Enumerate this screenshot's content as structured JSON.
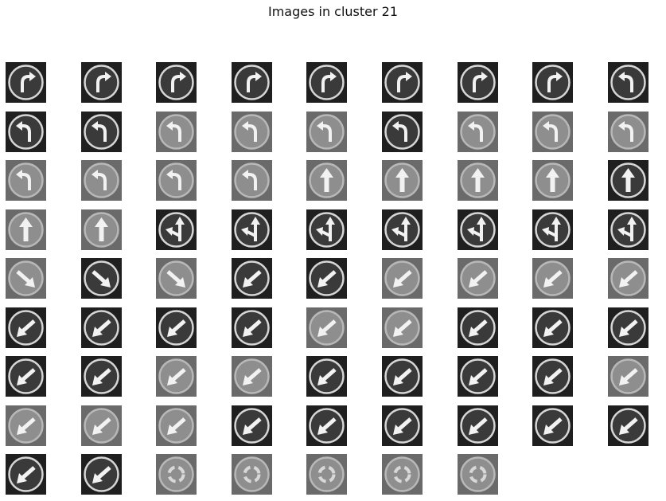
{
  "title": "Images in cluster 21",
  "grid": {
    "columns": 9,
    "count": 79
  },
  "thumbnails": [
    {
      "icon": "turn-right-arrow-icon",
      "tone": "dark"
    },
    {
      "icon": "turn-right-arrow-icon",
      "tone": "dark"
    },
    {
      "icon": "turn-right-arrow-icon",
      "tone": "dark"
    },
    {
      "icon": "turn-right-arrow-icon",
      "tone": "dark"
    },
    {
      "icon": "turn-right-arrow-icon",
      "tone": "dark"
    },
    {
      "icon": "turn-right-arrow-icon",
      "tone": "dark"
    },
    {
      "icon": "turn-right-arrow-icon",
      "tone": "dark"
    },
    {
      "icon": "turn-right-arrow-icon",
      "tone": "dark"
    },
    {
      "icon": "turn-left-arrow-icon",
      "tone": "dark"
    },
    {
      "icon": "turn-left-arrow-icon",
      "tone": "dark"
    },
    {
      "icon": "turn-left-arrow-icon",
      "tone": "dark"
    },
    {
      "icon": "turn-left-arrow-icon",
      "tone": "light"
    },
    {
      "icon": "turn-left-arrow-icon",
      "tone": "light"
    },
    {
      "icon": "turn-left-arrow-icon",
      "tone": "light"
    },
    {
      "icon": "turn-left-arrow-icon",
      "tone": "dark"
    },
    {
      "icon": "turn-left-arrow-icon",
      "tone": "light"
    },
    {
      "icon": "turn-left-arrow-icon",
      "tone": "light"
    },
    {
      "icon": "turn-left-arrow-icon",
      "tone": "light"
    },
    {
      "icon": "turn-left-arrow-icon",
      "tone": "light"
    },
    {
      "icon": "turn-left-arrow-icon",
      "tone": "light"
    },
    {
      "icon": "turn-left-arrow-icon",
      "tone": "light"
    },
    {
      "icon": "turn-left-arrow-icon",
      "tone": "light"
    },
    {
      "icon": "up-arrow-icon",
      "tone": "light"
    },
    {
      "icon": "up-arrow-icon",
      "tone": "light"
    },
    {
      "icon": "up-arrow-icon",
      "tone": "light"
    },
    {
      "icon": "up-arrow-icon",
      "tone": "light"
    },
    {
      "icon": "up-arrow-icon",
      "tone": "dark"
    },
    {
      "icon": "up-arrow-icon",
      "tone": "light"
    },
    {
      "icon": "up-arrow-icon",
      "tone": "light"
    },
    {
      "icon": "straight-or-left-arrow-icon",
      "tone": "dark"
    },
    {
      "icon": "straight-or-left-arrow-icon",
      "tone": "dark"
    },
    {
      "icon": "straight-or-left-arrow-icon",
      "tone": "dark"
    },
    {
      "icon": "straight-or-left-arrow-icon",
      "tone": "dark"
    },
    {
      "icon": "straight-or-left-arrow-icon",
      "tone": "dark"
    },
    {
      "icon": "straight-or-left-arrow-icon",
      "tone": "dark"
    },
    {
      "icon": "straight-or-left-arrow-icon",
      "tone": "dark"
    },
    {
      "icon": "down-right-arrow-icon",
      "tone": "light"
    },
    {
      "icon": "down-right-arrow-icon",
      "tone": "dark"
    },
    {
      "icon": "down-right-arrow-icon",
      "tone": "light"
    },
    {
      "icon": "down-left-arrow-icon",
      "tone": "dark"
    },
    {
      "icon": "down-left-arrow-icon",
      "tone": "dark"
    },
    {
      "icon": "down-left-arrow-icon",
      "tone": "light"
    },
    {
      "icon": "down-left-arrow-icon",
      "tone": "light"
    },
    {
      "icon": "down-left-arrow-icon",
      "tone": "light"
    },
    {
      "icon": "down-left-arrow-icon",
      "tone": "light"
    },
    {
      "icon": "down-left-arrow-icon",
      "tone": "dark"
    },
    {
      "icon": "down-left-arrow-icon",
      "tone": "dark"
    },
    {
      "icon": "down-left-arrow-icon",
      "tone": "dark"
    },
    {
      "icon": "down-left-arrow-icon",
      "tone": "dark"
    },
    {
      "icon": "down-left-arrow-icon",
      "tone": "light"
    },
    {
      "icon": "down-left-arrow-icon",
      "tone": "light"
    },
    {
      "icon": "down-left-arrow-icon",
      "tone": "dark"
    },
    {
      "icon": "down-left-arrow-icon",
      "tone": "dark"
    },
    {
      "icon": "down-left-arrow-icon",
      "tone": "dark"
    },
    {
      "icon": "down-left-arrow-icon",
      "tone": "dark"
    },
    {
      "icon": "down-left-arrow-icon",
      "tone": "dark"
    },
    {
      "icon": "down-left-arrow-icon",
      "tone": "light"
    },
    {
      "icon": "down-left-arrow-icon",
      "tone": "light"
    },
    {
      "icon": "down-left-arrow-icon",
      "tone": "dark"
    },
    {
      "icon": "down-left-arrow-icon",
      "tone": "dark"
    },
    {
      "icon": "down-left-arrow-icon",
      "tone": "dark"
    },
    {
      "icon": "down-left-arrow-icon",
      "tone": "dark"
    },
    {
      "icon": "down-left-arrow-icon",
      "tone": "light"
    },
    {
      "icon": "down-left-arrow-icon",
      "tone": "light"
    },
    {
      "icon": "down-left-arrow-icon",
      "tone": "light"
    },
    {
      "icon": "down-left-arrow-icon",
      "tone": "light"
    },
    {
      "icon": "down-left-arrow-icon",
      "tone": "dark"
    },
    {
      "icon": "down-left-arrow-icon",
      "tone": "dark"
    },
    {
      "icon": "down-left-arrow-icon",
      "tone": "dark"
    },
    {
      "icon": "down-left-arrow-icon",
      "tone": "dark"
    },
    {
      "icon": "down-left-arrow-icon",
      "tone": "dark"
    },
    {
      "icon": "down-left-arrow-icon",
      "tone": "dark"
    },
    {
      "icon": "down-left-arrow-icon",
      "tone": "dark"
    },
    {
      "icon": "down-left-arrow-icon",
      "tone": "dark"
    },
    {
      "icon": "roundabout-icon",
      "tone": "light"
    },
    {
      "icon": "roundabout-icon",
      "tone": "light"
    },
    {
      "icon": "roundabout-icon",
      "tone": "light"
    },
    {
      "icon": "roundabout-icon",
      "tone": "light"
    },
    {
      "icon": "roundabout-icon",
      "tone": "light"
    }
  ]
}
